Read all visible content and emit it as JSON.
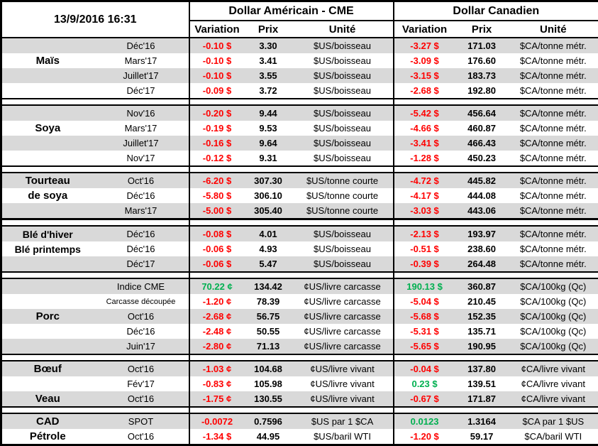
{
  "meta": {
    "timestamp": "13/9/2016 16:31"
  },
  "header": {
    "usd_title": "Dollar Américain - CME",
    "cad_title": "Dollar Canadien",
    "columns": {
      "variation": "Variation",
      "prix": "Prix",
      "unite": "Unité"
    }
  },
  "colors": {
    "negative": "#FF0000",
    "positive": "#00B050",
    "row_shade": "#D9D9D9",
    "border": "#000000"
  },
  "groups": [
    {
      "id": "mais",
      "rows": [
        {
          "name": "",
          "month": "Déc'16",
          "us_var": "-0.10 $",
          "us_prix": "3.30",
          "us_unit": "$US/boisseau",
          "ca_var": "-3.27 $",
          "ca_prix": "171.03",
          "ca_unit": "$CA/tonne métr."
        },
        {
          "name": "Maïs",
          "month": "Mars'17",
          "us_var": "-0.10 $",
          "us_prix": "3.41",
          "us_unit": "$US/boisseau",
          "ca_var": "-3.09 $",
          "ca_prix": "176.60",
          "ca_unit": "$CA/tonne métr."
        },
        {
          "name": "",
          "month": "Juillet'17",
          "us_var": "-0.10 $",
          "us_prix": "3.55",
          "us_unit": "$US/boisseau",
          "ca_var": "-3.15 $",
          "ca_prix": "183.73",
          "ca_unit": "$CA/tonne métr."
        },
        {
          "name": "",
          "month": "Déc'17",
          "us_var": "-0.09 $",
          "us_prix": "3.72",
          "us_unit": "$US/boisseau",
          "ca_var": "-2.68 $",
          "ca_prix": "192.80",
          "ca_unit": "$CA/tonne métr."
        }
      ]
    },
    {
      "id": "soya",
      "rows": [
        {
          "name": "",
          "month": "Nov'16",
          "us_var": "-0.20 $",
          "us_prix": "9.44",
          "us_unit": "$US/boisseau",
          "ca_var": "-5.42 $",
          "ca_prix": "456.64",
          "ca_unit": "$CA/tonne métr."
        },
        {
          "name": "Soya",
          "month": "Mars'17",
          "us_var": "-0.19 $",
          "us_prix": "9.53",
          "us_unit": "$US/boisseau",
          "ca_var": "-4.66 $",
          "ca_prix": "460.87",
          "ca_unit": "$CA/tonne métr."
        },
        {
          "name": "",
          "month": "Juillet'17",
          "us_var": "-0.16 $",
          "us_prix": "9.64",
          "us_unit": "$US/boisseau",
          "ca_var": "-3.41 $",
          "ca_prix": "466.43",
          "ca_unit": "$CA/tonne métr."
        },
        {
          "name": "",
          "month": "Nov'17",
          "us_var": "-0.12 $",
          "us_prix": "9.31",
          "us_unit": "$US/boisseau",
          "ca_var": "-1.28 $",
          "ca_prix": "450.23",
          "ca_unit": "$CA/tonne métr."
        }
      ]
    },
    {
      "id": "tourteau",
      "rows": [
        {
          "name": "Tourteau",
          "month": "Oct'16",
          "us_var": "-6.20 $",
          "us_prix": "307.30",
          "us_unit": "$US/tonne courte",
          "ca_var": "-4.72 $",
          "ca_prix": "445.82",
          "ca_unit": "$CA/tonne métr."
        },
        {
          "name": "de soya",
          "month": "Déc'16",
          "us_var": "-5.80 $",
          "us_prix": "306.10",
          "us_unit": "$US/tonne courte",
          "ca_var": "-4.17 $",
          "ca_prix": "444.08",
          "ca_unit": "$CA/tonne métr."
        },
        {
          "name": "",
          "month": "Mars'17",
          "us_var": "-5.00 $",
          "us_prix": "305.40",
          "us_unit": "$US/tonne courte",
          "ca_var": "-3.03 $",
          "ca_prix": "443.06",
          "ca_unit": "$CA/tonne métr."
        }
      ]
    },
    {
      "id": "ble",
      "rows": [
        {
          "name": "Blé d'hiver",
          "month": "Déc'16",
          "us_var": "-0.08 $",
          "us_prix": "4.01",
          "us_unit": "$US/boisseau",
          "ca_var": "-2.13 $",
          "ca_prix": "193.97",
          "ca_unit": "$CA/tonne métr."
        },
        {
          "name": "Blé printemps",
          "month": "Déc'16",
          "us_var": "-0.06 $",
          "us_prix": "4.93",
          "us_unit": "$US/boisseau",
          "ca_var": "-0.51 $",
          "ca_prix": "238.60",
          "ca_unit": "$CA/tonne métr."
        },
        {
          "name": "",
          "month": "Déc'17",
          "us_var": "-0.06 $",
          "us_prix": "5.47",
          "us_unit": "$US/boisseau",
          "ca_var": "-0.39 $",
          "ca_prix": "264.48",
          "ca_unit": "$CA/tonne métr."
        }
      ]
    },
    {
      "id": "porc",
      "rows": [
        {
          "name": "",
          "month": "Indice CME",
          "us_var": "70.22 ¢",
          "us_prix": "134.42",
          "us_unit": "¢US/livre carcasse",
          "ca_var": "190.13 $",
          "ca_prix": "360.87",
          "ca_unit": "$CA/100kg (Qc)"
        },
        {
          "name": "",
          "month": "Carcasse découpée",
          "us_var": "-1.20 ¢",
          "us_prix": "78.39",
          "us_unit": "¢US/livre carcasse",
          "ca_var": "-5.04 $",
          "ca_prix": "210.45",
          "ca_unit": "$CA/100kg (Qc)"
        },
        {
          "name": "Porc",
          "month": "Oct'16",
          "us_var": "-2.68 ¢",
          "us_prix": "56.75",
          "us_unit": "¢US/livre carcasse",
          "ca_var": "-5.68 $",
          "ca_prix": "152.35",
          "ca_unit": "$CA/100kg (Qc)"
        },
        {
          "name": "",
          "month": "Déc'16",
          "us_var": "-2.48 ¢",
          "us_prix": "50.55",
          "us_unit": "¢US/livre carcasse",
          "ca_var": "-5.31 $",
          "ca_prix": "135.71",
          "ca_unit": "$CA/100kg (Qc)"
        },
        {
          "name": "",
          "month": "Juin'17",
          "us_var": "-2.80 ¢",
          "us_prix": "71.13",
          "us_unit": "¢US/livre carcasse",
          "ca_var": "-5.65 $",
          "ca_prix": "190.95",
          "ca_unit": "$CA/100kg (Qc)"
        }
      ]
    },
    {
      "id": "boeuf-veau",
      "rows": [
        {
          "name": "Bœuf",
          "month": "Oct'16",
          "us_var": "-1.03 ¢",
          "us_prix": "104.68",
          "us_unit": "¢US/livre vivant",
          "ca_var": "-0.04 $",
          "ca_prix": "137.80",
          "ca_unit": "¢CA/livre vivant"
        },
        {
          "name": "",
          "month": "Fév'17",
          "us_var": "-0.83 ¢",
          "us_prix": "105.98",
          "us_unit": "¢US/livre vivant",
          "ca_var": "0.23 $",
          "ca_prix": "139.51",
          "ca_unit": "¢CA/livre vivant"
        },
        {
          "name": "Veau",
          "month": "Oct'16",
          "us_var": "-1.75 ¢",
          "us_prix": "130.55",
          "us_unit": "¢US/livre vivant",
          "ca_var": "-0.67 $",
          "ca_prix": "171.87",
          "ca_unit": "¢CA/livre vivant"
        }
      ]
    },
    {
      "id": "cad-petrole",
      "rows": [
        {
          "name": "CAD",
          "month": "SPOT",
          "us_var": "-0.0072",
          "us_prix": "0.7596",
          "us_unit": "$US par 1 $CA",
          "ca_var": "0.0123",
          "ca_prix": "1.3164",
          "ca_unit": "$CA par 1 $US"
        },
        {
          "name": "Pétrole",
          "month": "Oct'16",
          "us_var": "-1.34 $",
          "us_prix": "44.95",
          "us_unit": "$US/baril WTI",
          "ca_var": "-1.20 $",
          "ca_prix": "59.17",
          "ca_unit": "$CA/baril WTI"
        }
      ]
    }
  ]
}
